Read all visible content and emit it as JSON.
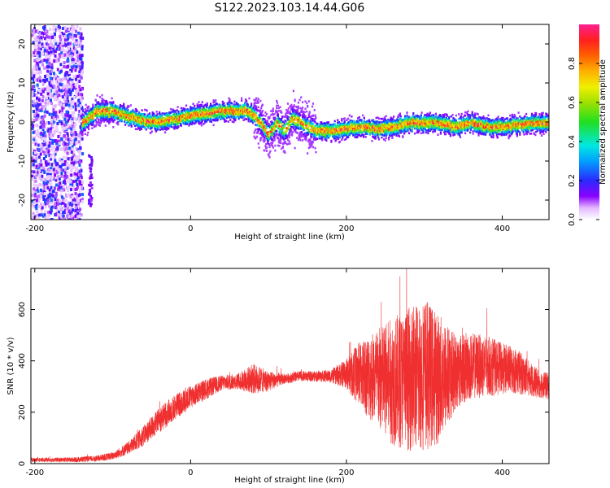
{
  "title": "S122.2023.103.14.44.G06",
  "chart_data": [
    {
      "type": "heatmap",
      "name": "spectrogram",
      "xlabel": "Height of straight line (km)",
      "ylabel": "Frequency (Hz)",
      "xlim": [
        -205,
        460
      ],
      "ylim": [
        -25,
        25
      ],
      "x_ticks": [
        -200,
        0,
        200,
        400
      ],
      "y_ticks": [
        -20,
        -10,
        0,
        10,
        20
      ],
      "colorbar": {
        "label": "Normalized spectral amplitude",
        "range": [
          0.0,
          1.0
        ],
        "ticks": [
          0.0,
          0.2,
          0.4,
          0.6,
          0.8
        ],
        "tick_labels": [
          "0.0",
          "0.2",
          "0.4",
          "0.6",
          "0.8"
        ],
        "colormap": "rainbow (white → violet → blue → cyan → green → yellow → orange → red → pink)"
      },
      "ridge": {
        "x": [
          -140,
          -120,
          -100,
          -80,
          -60,
          -40,
          -20,
          0,
          20,
          40,
          60,
          70,
          80,
          90,
          100,
          110,
          120,
          130,
          140,
          150,
          160,
          180,
          200,
          220,
          240,
          260,
          280,
          300,
          320,
          340,
          360,
          380,
          400,
          420,
          440,
          460
        ],
        "y": [
          0,
          3,
          3,
          1.5,
          0.5,
          0.3,
          1,
          2,
          2.5,
          3,
          3,
          3.5,
          2,
          0,
          -3,
          0,
          -2,
          1,
          0,
          -1,
          -2,
          -2,
          -1.5,
          -1,
          -1.5,
          -1,
          0,
          0,
          0,
          -1,
          0,
          -1,
          -1,
          -0.5,
          0,
          0
        ]
      },
      "noise_region_x": [
        -205,
        -140
      ]
    },
    {
      "type": "line",
      "name": "snr",
      "xlabel": "Height of straight line (km)",
      "ylabel": "SNR (10 * v/v)",
      "xlim": [
        -205,
        460
      ],
      "ylim": [
        0,
        760
      ],
      "x_ticks": [
        -200,
        0,
        200,
        400
      ],
      "y_ticks": [
        0,
        200,
        400,
        600
      ],
      "color": "#f03030",
      "series": [
        {
          "envelope_x": [
            -205,
            -180,
            -150,
            -120,
            -100,
            -80,
            -60,
            -40,
            -20,
            0,
            20,
            40,
            60,
            80,
            100,
            120,
            140,
            160,
            180,
            200,
            220,
            240,
            260,
            280,
            300,
            320,
            340,
            360,
            380,
            400,
            420,
            440,
            460
          ],
          "envelope_mean": [
            15,
            15,
            15,
            20,
            30,
            60,
            110,
            170,
            220,
            260,
            290,
            315,
            320,
            330,
            320,
            330,
            340,
            340,
            340,
            350,
            350,
            330,
            320,
            330,
            350,
            330,
            360,
            380,
            380,
            370,
            360,
            320,
            300
          ],
          "envelope_amp": [
            8,
            8,
            10,
            12,
            15,
            25,
            40,
            50,
            50,
            45,
            40,
            30,
            30,
            60,
            40,
            20,
            20,
            20,
            25,
            60,
            140,
            200,
            250,
            280,
            300,
            250,
            150,
            130,
            120,
            100,
            90,
            60,
            50
          ]
        }
      ]
    }
  ]
}
